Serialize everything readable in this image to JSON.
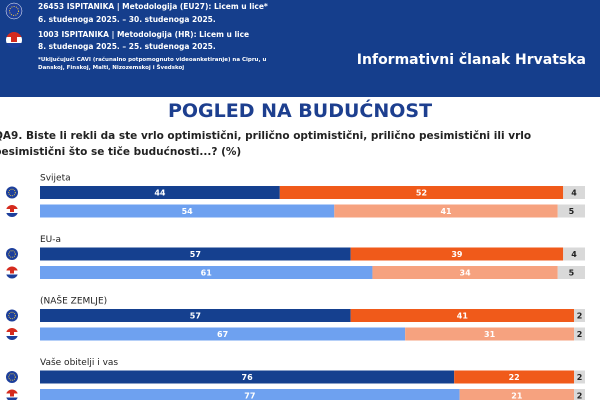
{
  "header": {
    "eu_sample": "26453 ISPITANIKA | Metodologija (EU27): Licem u lice*",
    "eu_dates": "6. studenoga 2025. – 30. studenoga 2025.",
    "hr_sample": "1003 ISPITANIKA | Metodologija (HR): Licem u lice",
    "hr_dates": "8. studenoga 2025. – 25. studenoga 2025.",
    "note": "*Uključujući CAVI (računalno potpomognuto videoanketiranje) na Cipru, u Danskoj, Finskoj, Malti, Nizozemskoj i Švedskoj",
    "brand": "Informativni članak Hrvatska"
  },
  "chart_data": {
    "type": "stacked-bar-h",
    "title": "POGLED NA BUDUĆNOST",
    "subtitle": "QA9. Biste li rekli da ste vrlo optimistični, prilično optimistični, prilično pesimistični ili vrlo pesimistični što se tiče budućnosti...? (%)",
    "xlim": [
      0,
      100
    ],
    "row_colors": [
      [
        "#15408f",
        "#f05a1a",
        "#d9d9d9"
      ],
      [
        "#6ea1f0",
        "#f6a27f",
        "#d9d9d9"
      ]
    ],
    "groups": [
      {
        "label": "Svijeta",
        "rows": [
          {
            "values": [
              44,
              52,
              4
            ]
          },
          {
            "values": [
              54,
              41,
              5
            ]
          }
        ]
      },
      {
        "label": "EU-a",
        "rows": [
          {
            "values": [
              57,
              39,
              4
            ]
          },
          {
            "values": [
              61,
              34,
              5
            ]
          }
        ]
      },
      {
        "label": "(NAŠE ZEMLJE)",
        "rows": [
          {
            "values": [
              57,
              41,
              2
            ]
          },
          {
            "values": [
              67,
              31,
              2
            ]
          }
        ]
      },
      {
        "label": "Vaše obitelji i vas",
        "rows": [
          {
            "values": [
              76,
              22,
              2
            ]
          },
          {
            "values": [
              77,
              21,
              2
            ]
          }
        ]
      }
    ]
  }
}
